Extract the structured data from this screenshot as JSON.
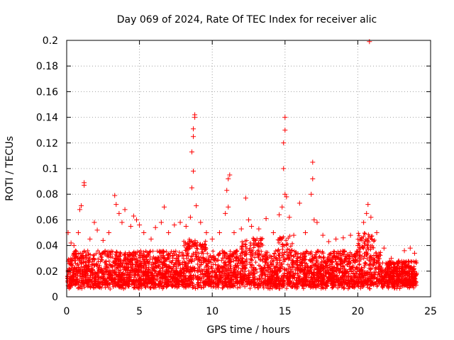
{
  "chart_data": {
    "type": "scatter",
    "title": "Day 069 of 2024, Rate Of TEC Index for receiver alic",
    "xlabel": "GPS time / hours",
    "ylabel": "ROTI / TECUs",
    "xlim": [
      0,
      25
    ],
    "ylim": [
      0,
      0.2
    ],
    "x_ticks": [
      0,
      5,
      10,
      15,
      20,
      25
    ],
    "y_ticks": [
      0,
      0.02,
      0.04,
      0.06,
      0.08,
      0.1,
      0.12,
      0.14,
      0.16,
      0.18,
      0.2
    ],
    "x_tick_labels": [
      "0",
      "5",
      "10",
      "15",
      "20",
      "25"
    ],
    "y_tick_labels": [
      "0",
      "0.02",
      "0.04",
      "0.06",
      "0.08",
      "0.1",
      "0.12",
      "0.14",
      "0.16",
      "0.18",
      "0.2"
    ],
    "grid": true,
    "marker": "+",
    "series_color": "#ff0000",
    "series": [
      {
        "name": "ROTI",
        "points": [
          [
            0.1,
            0.05
          ],
          [
            0.3,
            0.042
          ],
          [
            0.5,
            0.04
          ],
          [
            0.8,
            0.05
          ],
          [
            0.9,
            0.068
          ],
          [
            1.0,
            0.071
          ],
          [
            1.2,
            0.087
          ],
          [
            1.2,
            0.089
          ],
          [
            1.6,
            0.045
          ],
          [
            1.9,
            0.058
          ],
          [
            2.1,
            0.052
          ],
          [
            2.5,
            0.044
          ],
          [
            2.9,
            0.05
          ],
          [
            3.3,
            0.079
          ],
          [
            3.4,
            0.072
          ],
          [
            3.6,
            0.065
          ],
          [
            3.8,
            0.058
          ],
          [
            4.0,
            0.068
          ],
          [
            4.4,
            0.055
          ],
          [
            4.6,
            0.063
          ],
          [
            4.8,
            0.06
          ],
          [
            5.0,
            0.056
          ],
          [
            5.3,
            0.05
          ],
          [
            5.8,
            0.045
          ],
          [
            6.1,
            0.054
          ],
          [
            6.5,
            0.058
          ],
          [
            6.7,
            0.07
          ],
          [
            7.0,
            0.05
          ],
          [
            7.4,
            0.056
          ],
          [
            7.8,
            0.058
          ],
          [
            8.2,
            0.055
          ],
          [
            8.5,
            0.062
          ],
          [
            8.6,
            0.085
          ],
          [
            8.6,
            0.113
          ],
          [
            8.7,
            0.125
          ],
          [
            8.7,
            0.131
          ],
          [
            8.8,
            0.14
          ],
          [
            8.8,
            0.142
          ],
          [
            8.7,
            0.098
          ],
          [
            8.9,
            0.071
          ],
          [
            9.2,
            0.058
          ],
          [
            9.6,
            0.05
          ],
          [
            10.0,
            0.045
          ],
          [
            10.5,
            0.05
          ],
          [
            10.9,
            0.065
          ],
          [
            11.0,
            0.083
          ],
          [
            11.1,
            0.092
          ],
          [
            11.2,
            0.095
          ],
          [
            11.1,
            0.07
          ],
          [
            11.5,
            0.05
          ],
          [
            12.0,
            0.053
          ],
          [
            12.3,
            0.077
          ],
          [
            12.5,
            0.06
          ],
          [
            12.7,
            0.055
          ],
          [
            13.2,
            0.053
          ],
          [
            13.7,
            0.061
          ],
          [
            14.2,
            0.05
          ],
          [
            14.6,
            0.064
          ],
          [
            14.8,
            0.07
          ],
          [
            14.9,
            0.1
          ],
          [
            14.9,
            0.12
          ],
          [
            15.0,
            0.13
          ],
          [
            15.0,
            0.14
          ],
          [
            15.0,
            0.08
          ],
          [
            15.1,
            0.078
          ],
          [
            15.3,
            0.062
          ],
          [
            15.6,
            0.048
          ],
          [
            16.0,
            0.073
          ],
          [
            16.4,
            0.05
          ],
          [
            16.8,
            0.08
          ],
          [
            16.9,
            0.092
          ],
          [
            16.9,
            0.105
          ],
          [
            17.0,
            0.06
          ],
          [
            17.2,
            0.058
          ],
          [
            17.6,
            0.048
          ],
          [
            18.0,
            0.043
          ],
          [
            18.5,
            0.045
          ],
          [
            19.0,
            0.046
          ],
          [
            19.5,
            0.048
          ],
          [
            20.0,
            0.04
          ],
          [
            20.4,
            0.058
          ],
          [
            20.6,
            0.065
          ],
          [
            20.7,
            0.072
          ],
          [
            20.8,
            0.199
          ],
          [
            20.9,
            0.062
          ],
          [
            21.3,
            0.05
          ],
          [
            21.8,
            0.038
          ],
          [
            22.3,
            0.03
          ],
          [
            22.8,
            0.028
          ],
          [
            23.2,
            0.036
          ],
          [
            23.6,
            0.038
          ],
          [
            23.9,
            0.034
          ]
        ]
      }
    ]
  }
}
